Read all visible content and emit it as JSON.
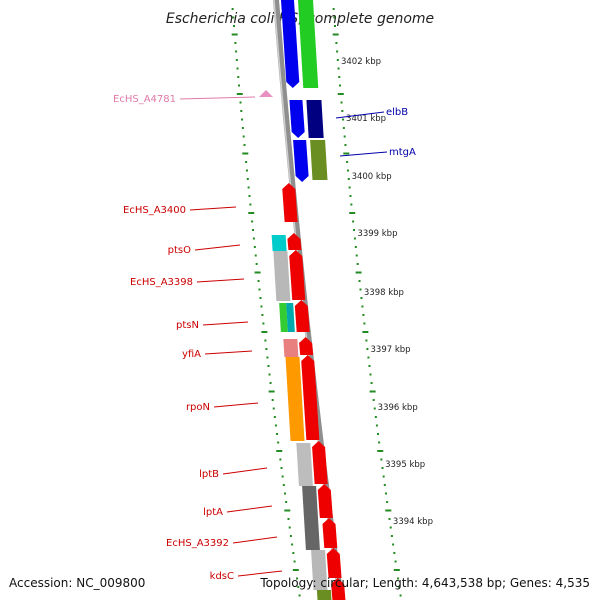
{
  "title": "Escherichia coli HS, complete genome",
  "footer": {
    "accession": "Accession: NC_009800",
    "topology": "Topology: circular; Length: 4,643,538 bp; Genes: 4,535"
  },
  "colors": {
    "backbone": "#8f8f8f",
    "label_red": "#cc0000",
    "label_blue": "#0000aa",
    "label_pink": "#e07aa8",
    "tick_green": "#228b22"
  },
  "ruler": [
    {
      "label": "3402 kbp"
    },
    {
      "label": "3401 kbp"
    },
    {
      "label": "3400 kbp"
    },
    {
      "label": "3399 kbp"
    },
    {
      "label": "3398 kbp"
    },
    {
      "label": "3397 kbp"
    },
    {
      "label": "3396 kbp"
    },
    {
      "label": "3395 kbp"
    },
    {
      "label": "3394 kbp"
    }
  ],
  "gene_labels": [
    {
      "name": "EcHS_A4781",
      "side": "left",
      "color": "#e07aa8"
    },
    {
      "name": "elbB",
      "side": "right",
      "color": "#0000aa"
    },
    {
      "name": "mtgA",
      "side": "right",
      "color": "#0000aa"
    },
    {
      "name": "EcHS_A3400",
      "side": "left",
      "color": "#cc0000"
    },
    {
      "name": "ptsO",
      "side": "left",
      "color": "#cc0000"
    },
    {
      "name": "EcHS_A3398",
      "side": "left",
      "color": "#cc0000"
    },
    {
      "name": "ptsN",
      "side": "left",
      "color": "#cc0000"
    },
    {
      "name": "yfiA",
      "side": "left",
      "color": "#cc0000"
    },
    {
      "name": "rpoN",
      "side": "left",
      "color": "#cc0000"
    },
    {
      "name": "lptB",
      "side": "left",
      "color": "#cc0000"
    },
    {
      "name": "lptA",
      "side": "left",
      "color": "#cc0000"
    },
    {
      "name": "EcHS_A3392",
      "side": "left",
      "color": "#cc0000"
    },
    {
      "name": "kdsC",
      "side": "left",
      "color": "#cc0000"
    }
  ],
  "features": {
    "outer_right_blue": [
      {
        "color": "#0000ee",
        "direction": "reverse"
      },
      {
        "color": "#0000ee",
        "direction": "reverse"
      },
      {
        "color": "#0000ee",
        "direction": "reverse"
      }
    ],
    "outer_right_other": [
      {
        "color": "#22cc22"
      },
      {
        "color": "#000080"
      },
      {
        "color": "#6b8e23"
      }
    ],
    "forward_red": [
      {
        "color": "#ee0000",
        "direction": "forward"
      },
      {
        "color": "#ee0000",
        "direction": "forward"
      },
      {
        "color": "#ee0000",
        "direction": "forward"
      },
      {
        "color": "#ee0000",
        "direction": "forward"
      },
      {
        "color": "#ee0000",
        "direction": "forward"
      },
      {
        "color": "#ee0000",
        "direction": "forward"
      },
      {
        "color": "#ee0000",
        "direction": "forward"
      },
      {
        "color": "#ee0000",
        "direction": "forward"
      },
      {
        "color": "#ee0000",
        "direction": "forward"
      },
      {
        "color": "#ee0000",
        "direction": "forward"
      },
      {
        "color": "#ee0000",
        "direction": "forward"
      }
    ],
    "cog_strip": [
      {
        "color": "#00cccc"
      },
      {
        "color": "#b8b8b8"
      },
      {
        "color": "#33cc33"
      },
      {
        "color": "#00aaaa"
      },
      {
        "color": "#e88080"
      },
      {
        "color": "#ff9900"
      },
      {
        "color": "#bdbdbd"
      },
      {
        "color": "#666666"
      },
      {
        "color": "#b8b8b8"
      },
      {
        "color": "#6b8e23"
      }
    ],
    "misc_pink": {
      "color": "#e890c0"
    }
  }
}
